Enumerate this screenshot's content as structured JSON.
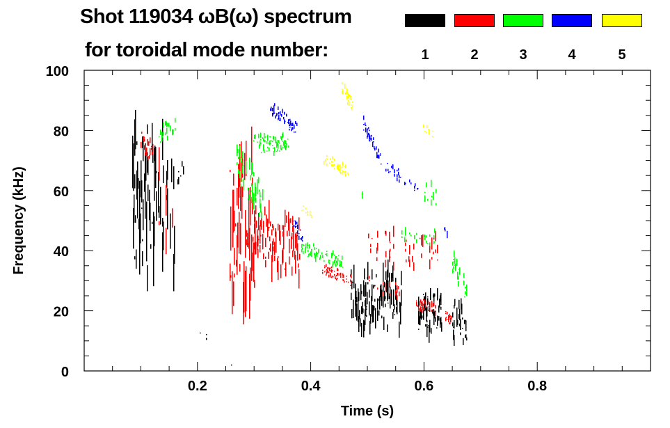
{
  "chart_data": {
    "type": "heatmap",
    "title": "Shot 119034 ωB(ω) spectrum",
    "subtitle": "for toroidal mode number:",
    "xlabel": "Time (s)",
    "ylabel": "Frequency (kHz)",
    "xlim": [
      0,
      1.0
    ],
    "ylim": [
      0,
      100
    ],
    "xticks": [
      "0.2",
      "0.4",
      "0.6",
      "0.8"
    ],
    "xtick_values": [
      0.2,
      0.4,
      0.6,
      0.8
    ],
    "yticks": [
      "0",
      "20",
      "40",
      "60",
      "80",
      "100"
    ],
    "ytick_values": [
      0,
      20,
      40,
      60,
      80,
      100
    ],
    "legend": [
      {
        "label": "1",
        "color": "#000000"
      },
      {
        "label": "2",
        "color": "#ff0000"
      },
      {
        "label": "3",
        "color": "#00ff00"
      },
      {
        "label": "4",
        "color": "#0000ff"
      },
      {
        "label": "5",
        "color": "#ffff00"
      }
    ],
    "series": [
      {
        "name": "1",
        "color": "#000000",
        "segments": [
          [
            0.085,
            0.125,
            55,
            58,
            22,
            0.9
          ],
          [
            0.125,
            0.16,
            58,
            48,
            18,
            0.5
          ],
          [
            0.165,
            0.175,
            64,
            64,
            4,
            0.6
          ],
          [
            0.47,
            0.56,
            24,
            23,
            8,
            0.85
          ],
          [
            0.59,
            0.63,
            20,
            20,
            6,
            0.85
          ],
          [
            0.65,
            0.675,
            17,
            15,
            5,
            0.85
          ],
          [
            0.2,
            0.22,
            12,
            11,
            1,
            0.3
          ],
          [
            0.25,
            0.26,
            2,
            3,
            1,
            0.3
          ]
        ]
      },
      {
        "name": "2",
        "color": "#ff0000",
        "segments": [
          [
            0.1,
            0.12,
            77,
            72,
            3,
            0.7
          ],
          [
            0.13,
            0.155,
            60,
            40,
            15,
            0.2
          ],
          [
            0.257,
            0.3,
            50,
            46,
            20,
            0.9
          ],
          [
            0.3,
            0.38,
            46,
            40,
            8,
            0.8
          ],
          [
            0.42,
            0.47,
            34,
            30,
            1.5,
            0.7
          ],
          [
            0.5,
            0.63,
            42,
            40,
            5,
            0.2
          ],
          [
            0.5,
            0.56,
            30,
            26,
            2,
            0.3
          ],
          [
            0.585,
            0.62,
            22,
            21,
            2,
            0.5
          ],
          [
            0.637,
            0.648,
            18,
            17,
            2,
            0.9
          ]
        ]
      },
      {
        "name": "3",
        "color": "#00ff00",
        "segments": [
          [
            0.13,
            0.16,
            78,
            82,
            2.5,
            0.6
          ],
          [
            0.268,
            0.314,
            68,
            55,
            6,
            0.7
          ],
          [
            0.297,
            0.36,
            75,
            76,
            2.5,
            0.8
          ],
          [
            0.383,
            0.456,
            41,
            36,
            2,
            0.7
          ],
          [
            0.488,
            0.495,
            58,
            58,
            3,
            0.5
          ],
          [
            0.6,
            0.62,
            60,
            58,
            3,
            0.4
          ],
          [
            0.56,
            0.62,
            45,
            44,
            2,
            0.3
          ],
          [
            0.645,
            0.675,
            38,
            26,
            3,
            0.6
          ]
        ]
      },
      {
        "name": "4",
        "color": "#0000ff",
        "segments": [
          [
            0.326,
            0.375,
            88,
            80,
            1.8,
            0.8
          ],
          [
            0.37,
            0.385,
            49,
            44,
            2,
            0.8
          ],
          [
            0.493,
            0.522,
            82,
            71,
            2,
            0.8
          ],
          [
            0.522,
            0.59,
            70,
            60,
            1.5,
            0.5
          ],
          [
            0.62,
            0.64,
            53,
            47,
            2,
            0.3
          ]
        ]
      },
      {
        "name": "5",
        "color": "#ffff00",
        "segments": [
          [
            0.455,
            0.473,
            94,
            89,
            2,
            0.8
          ],
          [
            0.42,
            0.465,
            71,
            66,
            1.5,
            0.6
          ],
          [
            0.59,
            0.62,
            82,
            78,
            1.5,
            0.3
          ],
          [
            0.38,
            0.4,
            55,
            52,
            1,
            0.3
          ]
        ]
      }
    ]
  }
}
